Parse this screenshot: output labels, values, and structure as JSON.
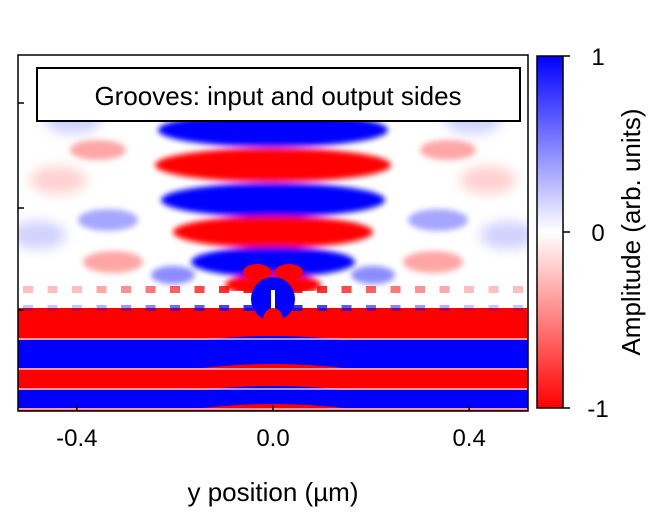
{
  "chart_data": {
    "type": "heatmap",
    "title": "",
    "legend_box_text": "Grooves: input and output sides",
    "xlabel": "y position (µm)",
    "ylabel": "",
    "xlim": [
      -0.52,
      0.52
    ],
    "x_ticks": [
      {
        "value": -0.4,
        "label": "-0.4"
      },
      {
        "value": 0.0,
        "label": "0.0"
      },
      {
        "value": 0.4,
        "label": "0.4"
      }
    ],
    "colorbar": {
      "label": "Amplitude (arb. units)",
      "range": [
        -1,
        1
      ],
      "ticks": [
        {
          "value": 1,
          "label": "1"
        },
        {
          "value": 0,
          "label": "0"
        },
        {
          "value": -1,
          "label": "-1"
        }
      ],
      "colors": {
        "negative": "#ff0000",
        "zero": "#ffffff",
        "positive": "#0000ff"
      }
    },
    "regions": {
      "upper": "diffracted beam with alternating blue/red fringes, focused near y = 0",
      "metal_film": "white strip with periodic grooves and a central slit",
      "lower": "horizontal red/blue bands of the incident wave"
    }
  }
}
